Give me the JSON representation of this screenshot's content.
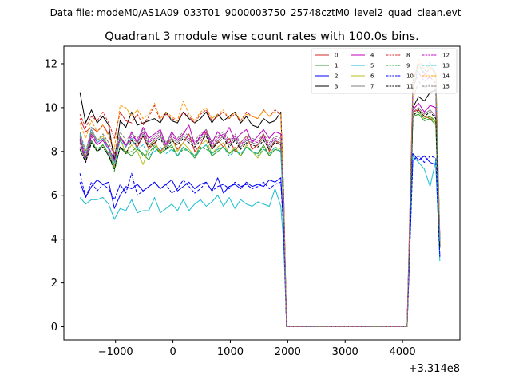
{
  "figure": {
    "suptitle": "Data file: modeM0/AS1A09_033T01_9000003750_25748cztM0_level2_quad_clean.evt",
    "title": "Quadrant 3 module wise count rates with 100.0s bins."
  },
  "chart_data": {
    "type": "line",
    "title": "Quadrant 3 module wise count rates with 100.0s bins.",
    "xlabel": "",
    "ylabel": "",
    "x_offset_label": "+3.314e8",
    "xlim": [
      -1900,
      5000
    ],
    "ylim": [
      -0.6,
      12.8
    ],
    "xticks": [
      -1000,
      0,
      1000,
      2000,
      3000,
      4000
    ],
    "xtick_labels": [
      "−1000",
      "0",
      "1000",
      "2000",
      "3000",
      "4000"
    ],
    "yticks": [
      0,
      2,
      4,
      6,
      8,
      10,
      12
    ],
    "ytick_labels": [
      "0",
      "2",
      "4",
      "6",
      "8",
      "10",
      "12"
    ],
    "grid": false,
    "legend_position": "top-right",
    "legend_columns": 4,
    "x": [
      -1620,
      -1520,
      -1420,
      -1320,
      -1220,
      -1120,
      -1020,
      -920,
      -820,
      -720,
      -620,
      -520,
      -420,
      -320,
      -220,
      -120,
      -20,
      80,
      180,
      280,
      380,
      480,
      580,
      680,
      780,
      880,
      980,
      1080,
      1180,
      1280,
      1380,
      1480,
      1580,
      1680,
      1780,
      1880,
      1930,
      1980,
      2100,
      2400,
      2800,
      3200,
      3600,
      4000,
      4080,
      4180,
      4280,
      4380,
      4480,
      4580,
      4650
    ],
    "series": [
      {
        "name": "0",
        "color": "#d62728",
        "dash": "solid",
        "values": [
          9.5,
          8.9,
          9.1,
          8.9,
          9.2,
          8.8,
          7.9,
          8.6,
          8.3,
          8.5,
          8.2,
          8.7,
          8.1,
          8.4,
          8.0,
          8.3,
          8.6,
          8.1,
          8.4,
          8.8,
          8.0,
          8.3,
          8.9,
          8.1,
          8.5,
          8.2,
          8.6,
          8.0,
          8.4,
          8.7,
          8.1,
          8.3,
          8.8,
          8.0,
          8.5,
          8.3,
          5.5,
          0,
          0,
          0,
          0,
          0,
          0,
          0,
          0,
          9.8,
          9.9,
          9.6,
          9.5,
          9.4,
          3.8
        ]
      },
      {
        "name": "1",
        "color": "#2ca02c",
        "dash": "solid",
        "values": [
          8.4,
          7.6,
          8.5,
          8.0,
          8.3,
          7.9,
          7.2,
          8.2,
          8.0,
          7.8,
          8.1,
          7.9,
          7.6,
          8.2,
          7.9,
          8.1,
          8.3,
          7.8,
          8.2,
          8.0,
          7.7,
          8.1,
          8.3,
          7.8,
          8.0,
          8.2,
          7.9,
          8.1,
          7.8,
          8.2,
          8.0,
          7.9,
          8.3,
          7.8,
          8.1,
          8.0,
          5.3,
          0,
          0,
          0,
          0,
          0,
          0,
          0,
          0,
          9.6,
          9.7,
          9.4,
          9.5,
          9.2,
          3.6
        ]
      },
      {
        "name": "2",
        "color": "#0000ff",
        "dash": "solid",
        "values": [
          6.6,
          5.9,
          6.4,
          6.7,
          6.5,
          6.6,
          5.4,
          6.0,
          6.4,
          6.3,
          6.5,
          6.2,
          6.4,
          6.6,
          6.3,
          6.5,
          6.7,
          6.2,
          6.4,
          6.6,
          6.3,
          6.5,
          6.6,
          6.2,
          6.8,
          6.1,
          6.4,
          6.5,
          6.3,
          6.6,
          6.4,
          6.5,
          6.4,
          6.7,
          6.6,
          6.8,
          4.5,
          0,
          0,
          0,
          0,
          0,
          0,
          0,
          0,
          7.9,
          7.6,
          7.8,
          7.5,
          7.4,
          3.2
        ]
      },
      {
        "name": "3",
        "color": "#000000",
        "dash": "solid",
        "values": [
          10.7,
          9.3,
          9.9,
          9.3,
          9.6,
          9.2,
          7.6,
          9.4,
          9.1,
          9.8,
          9.2,
          9.3,
          9.4,
          9.5,
          9.3,
          9.8,
          9.4,
          9.3,
          9.8,
          9.5,
          9.3,
          9.5,
          9.8,
          9.3,
          9.7,
          9.4,
          9.6,
          9.8,
          9.3,
          9.6,
          9.2,
          9.1,
          9.5,
          9.3,
          9.4,
          9.8,
          6.0,
          0,
          0,
          0,
          0,
          0,
          0,
          0,
          0,
          10.0,
          10.5,
          10.3,
          10.7,
          10.8,
          4.0
        ]
      },
      {
        "name": "4",
        "color": "#bf00bf",
        "dash": "solid",
        "values": [
          8.5,
          7.5,
          8.7,
          8.3,
          8.5,
          8.1,
          7.3,
          8.7,
          8.2,
          8.9,
          8.4,
          9.1,
          8.6,
          8.8,
          9.0,
          8.3,
          8.9,
          8.5,
          8.8,
          9.2,
          8.3,
          8.7,
          9.0,
          8.4,
          8.9,
          8.6,
          9.1,
          8.5,
          8.8,
          9.0,
          8.4,
          8.7,
          9.0,
          8.6,
          8.9,
          8.8,
          5.7,
          0,
          0,
          0,
          0,
          0,
          0,
          0,
          0,
          9.9,
          10.2,
          9.8,
          10.1,
          10.0,
          3.9
        ]
      },
      {
        "name": "5",
        "color": "#17becf",
        "dash": "solid",
        "values": [
          5.9,
          5.6,
          5.8,
          5.8,
          5.9,
          5.6,
          4.9,
          5.4,
          5.3,
          5.8,
          5.2,
          5.3,
          5.3,
          5.9,
          5.2,
          5.4,
          5.6,
          5.3,
          5.8,
          5.3,
          5.6,
          5.8,
          5.5,
          5.7,
          6.0,
          5.5,
          5.9,
          5.4,
          5.8,
          5.6,
          5.5,
          5.7,
          5.6,
          5.5,
          6.3,
          5.5,
          3.8,
          0,
          0,
          0,
          0,
          0,
          0,
          0,
          0,
          7.8,
          7.5,
          7.2,
          6.4,
          7.6,
          3.0
        ]
      },
      {
        "name": "6",
        "color": "#bcbd22",
        "dash": "solid",
        "values": [
          8.9,
          7.8,
          8.8,
          8.5,
          8.7,
          8.2,
          7.3,
          8.6,
          7.9,
          8.3,
          8.0,
          7.4,
          8.2,
          8.5,
          7.9,
          8.3,
          8.6,
          8.0,
          8.4,
          8.1,
          7.8,
          8.3,
          8.5,
          7.9,
          8.2,
          8.4,
          7.9,
          8.2,
          7.8,
          8.3,
          8.0,
          7.7,
          8.1,
          7.9,
          8.2,
          8.1,
          5.4,
          0,
          0,
          0,
          0,
          0,
          0,
          0,
          0,
          9.7,
          9.8,
          9.5,
          9.6,
          9.3,
          3.7
        ]
      },
      {
        "name": "7",
        "color": "#7f7f7f",
        "dash": "solid",
        "values": [
          8.7,
          7.7,
          8.9,
          8.4,
          8.6,
          8.2,
          7.5,
          8.7,
          8.3,
          8.6,
          8.4,
          8.8,
          8.3,
          8.5,
          8.7,
          8.2,
          8.6,
          8.4,
          8.7,
          8.5,
          8.3,
          8.6,
          8.8,
          8.2,
          8.5,
          8.7,
          8.3,
          8.6,
          8.2,
          8.5,
          8.4,
          8.3,
          8.6,
          8.2,
          8.5,
          8.4,
          5.5,
          0,
          0,
          0,
          0,
          0,
          0,
          0,
          0,
          9.8,
          10.0,
          9.7,
          9.9,
          9.6,
          3.8
        ]
      },
      {
        "name": "8",
        "color": "#d62728",
        "dash": "dashed",
        "values": [
          9.7,
          9.1,
          9.6,
          9.4,
          9.8,
          9.3,
          8.6,
          9.8,
          9.4,
          9.3,
          9.7,
          9.2,
          9.6,
          10.1,
          9.4,
          9.7,
          9.5,
          9.4,
          9.8,
          9.6,
          9.3,
          9.7,
          9.9,
          9.4,
          9.6,
          9.8,
          9.5,
          9.7,
          9.4,
          9.8,
          9.6,
          9.5,
          9.9,
          9.6,
          9.9,
          9.7,
          6.1,
          0,
          0,
          0,
          0,
          0,
          0,
          0,
          0,
          11.2,
          12.0,
          11.5,
          11.8,
          11.6,
          4.1
        ]
      },
      {
        "name": "9",
        "color": "#2ca02c",
        "dash": "dashed",
        "values": [
          8.2,
          7.6,
          8.5,
          8.1,
          8.3,
          7.8,
          7.1,
          8.2,
          7.9,
          8.0,
          8.2,
          7.8,
          7.9,
          8.3,
          7.9,
          8.1,
          8.2,
          7.8,
          8.1,
          8.0,
          7.8,
          8.2,
          8.1,
          7.9,
          8.1,
          8.2,
          7.9,
          8.1,
          7.8,
          8.2,
          8.0,
          7.9,
          8.2,
          7.8,
          8.1,
          8.0,
          5.3,
          0,
          0,
          0,
          0,
          0,
          0,
          0,
          0,
          9.7,
          9.8,
          9.5,
          9.6,
          9.4,
          3.7
        ]
      },
      {
        "name": "10",
        "color": "#0000ff",
        "dash": "dashed",
        "values": [
          7.0,
          5.9,
          6.6,
          6.2,
          6.5,
          6.3,
          5.8,
          6.5,
          6.1,
          7.0,
          6.0,
          6.2,
          6.4,
          6.6,
          6.3,
          6.5,
          6.1,
          6.3,
          6.7,
          6.4,
          6.1,
          6.3,
          6.6,
          6.2,
          6.4,
          6.5,
          6.3,
          6.6,
          6.4,
          6.5,
          6.3,
          6.4,
          6.6,
          6.3,
          6.5,
          6.6,
          4.3,
          0,
          0,
          0,
          0,
          0,
          0,
          0,
          0,
          7.6,
          7.8,
          7.5,
          7.8,
          7.7,
          3.2
        ]
      },
      {
        "name": "11",
        "color": "#000000",
        "dash": "dashed",
        "values": [
          8.1,
          7.5,
          8.4,
          8.0,
          8.2,
          7.8,
          7.2,
          8.2,
          7.9,
          8.5,
          8.3,
          8.7,
          8.2,
          8.4,
          8.6,
          8.1,
          8.5,
          8.3,
          8.6,
          8.4,
          8.2,
          8.5,
          8.7,
          8.1,
          8.4,
          8.6,
          8.2,
          8.5,
          8.1,
          8.4,
          8.3,
          8.2,
          8.5,
          8.1,
          8.4,
          8.3,
          5.5,
          0,
          0,
          0,
          0,
          0,
          0,
          0,
          0,
          9.6,
          9.9,
          9.6,
          9.8,
          9.5,
          3.6
        ]
      },
      {
        "name": "12",
        "color": "#bf00bf",
        "dash": "dashed",
        "values": [
          8.6,
          7.7,
          8.8,
          8.4,
          8.6,
          8.2,
          7.6,
          8.6,
          8.3,
          8.7,
          8.5,
          8.9,
          8.4,
          8.6,
          8.8,
          8.3,
          8.7,
          8.5,
          8.8,
          8.6,
          8.4,
          8.7,
          8.9,
          8.3,
          8.6,
          8.8,
          8.4,
          8.7,
          8.3,
          8.6,
          8.5,
          8.4,
          8.7,
          8.3,
          8.6,
          8.5,
          5.6,
          0,
          0,
          0,
          0,
          0,
          0,
          0,
          0,
          10.9,
          11.6,
          11.2,
          11.4,
          11.1,
          4.0
        ]
      },
      {
        "name": "13",
        "color": "#17becf",
        "dash": "dashed",
        "values": [
          8.8,
          7.9,
          9.1,
          8.4,
          8.6,
          8.1,
          7.4,
          8.5,
          8.2,
          8.6,
          8.1,
          8.3,
          7.8,
          8.0,
          8.2,
          7.9,
          8.1,
          7.8,
          8.2,
          8.0,
          7.8,
          8.1,
          8.3,
          7.9,
          8.1,
          8.2,
          7.8,
          8.0,
          7.9,
          8.2,
          8.0,
          7.8,
          8.1,
          7.9,
          8.2,
          8.0,
          5.4,
          0,
          0,
          0,
          0,
          0,
          0,
          0,
          0,
          10.8,
          11.9,
          11.6,
          12.1,
          11.4,
          3.9
        ]
      },
      {
        "name": "14",
        "color": "#ff9900",
        "dash": "dashed",
        "values": [
          9.3,
          8.6,
          9.4,
          8.9,
          9.2,
          8.7,
          8.1,
          10.1,
          10.0,
          9.6,
          9.9,
          9.5,
          9.7,
          10.2,
          9.5,
          9.8,
          9.6,
          9.4,
          10.3,
          9.7,
          9.4,
          9.8,
          10.0,
          9.5,
          9.7,
          9.9,
          9.5,
          9.8,
          9.4,
          9.7,
          9.6,
          9.5,
          9.9,
          9.6,
          9.8,
          9.7,
          6.0,
          0,
          0,
          0,
          0,
          0,
          0,
          0,
          0,
          11.0,
          12.2,
          11.7,
          11.9,
          11.5,
          4.1
        ]
      },
      {
        "name": "15",
        "color": "#7f7f7f",
        "dash": "dashed",
        "values": [
          8.9,
          8.0,
          9.0,
          8.5,
          8.8,
          8.4,
          7.8,
          8.9,
          8.5,
          8.8,
          8.6,
          9.0,
          8.5,
          8.7,
          8.9,
          8.4,
          8.8,
          8.6,
          8.9,
          8.7,
          8.5,
          8.8,
          9.0,
          8.4,
          8.7,
          8.9,
          8.5,
          8.8,
          8.4,
          8.7,
          8.6,
          8.5,
          8.8,
          8.4,
          8.7,
          8.6,
          5.7,
          0,
          0,
          0,
          0,
          0,
          0,
          0,
          0,
          10.4,
          11.2,
          10.9,
          11.1,
          10.8,
          3.9
        ]
      }
    ]
  }
}
